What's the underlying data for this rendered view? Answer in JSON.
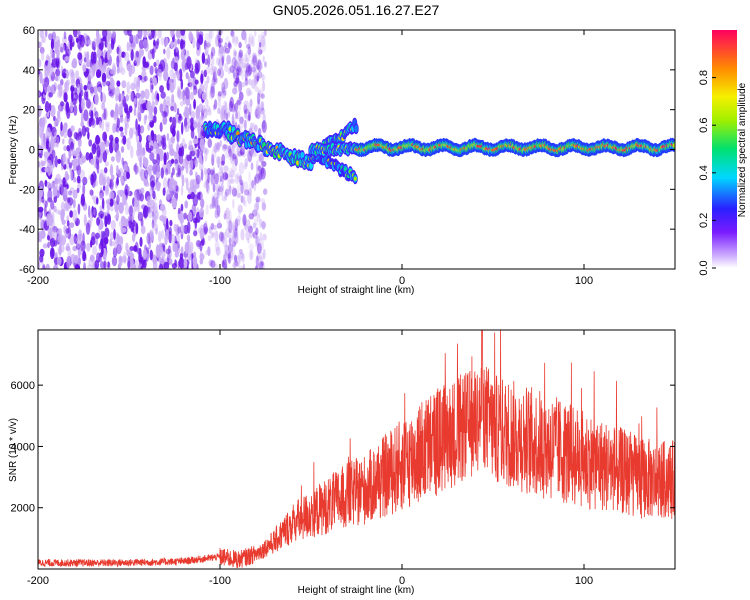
{
  "figure": {
    "title": "GN05.2026.051.16.27.E27"
  },
  "colors": {
    "snr_line": "#e83a2e",
    "noise_purple": "#6a16e8",
    "background": "#ffffff",
    "axis": "#000000"
  },
  "chart_data": [
    {
      "type": "heatmap",
      "name": "spectrogram",
      "xlabel": "Height of straight line (km)",
      "ylabel": "Frequency (Hz)",
      "xlim": [
        -200,
        150
      ],
      "ylim": [
        -60,
        60
      ],
      "xticks": [
        -200,
        -100,
        0,
        100
      ],
      "yticks": [
        60,
        40,
        20,
        0,
        -20,
        -40,
        -60
      ],
      "colorbar": {
        "label": "Normalized spectral amplitude",
        "range": [
          0,
          1
        ],
        "ticks": [
          "0.0",
          "0.2",
          "0.4",
          "0.6",
          "0.8"
        ],
        "tick_values": [
          0,
          0.2,
          0.4,
          0.6,
          0.8
        ]
      },
      "regions": [
        {
          "feature": "broadband noise",
          "x": [
            -200,
            -108
          ],
          "frequency": [
            -60,
            60
          ],
          "amplitude": 0.15
        },
        {
          "feature": "sparse noise",
          "x": [
            -108,
            -75
          ],
          "frequency": [
            -60,
            60
          ],
          "amplitude": 0.05
        },
        {
          "feature": "signal onset",
          "x": [
            -108,
            -95
          ],
          "frequency_center": 10,
          "amplitude": 0.3
        },
        {
          "feature": "descending signal",
          "x": [
            -95,
            -50
          ],
          "frequency_center": [
            8,
            -7
          ],
          "amplitude": 0.35
        },
        {
          "feature": "branching signal",
          "x": [
            -50,
            -25
          ],
          "frequency_center": [
            12,
            -14
          ],
          "amplitude": 0.35
        },
        {
          "feature": "steady signal",
          "x": [
            -25,
            150
          ],
          "frequency_center": 1,
          "amplitude": 0.85
        }
      ]
    },
    {
      "type": "line",
      "name": "snr",
      "xlabel": "Height of straight line (km)",
      "ylabel": "SNR (10 * v/v)",
      "xlim": [
        -200,
        150
      ],
      "ylim": [
        0,
        7800
      ],
      "xticks": [
        -200,
        -100,
        0,
        100
      ],
      "yticks": [
        2000,
        4000,
        6000
      ],
      "series": [
        {
          "name": "SNR",
          "x": [
            -200,
            -180,
            -160,
            -140,
            -120,
            -100,
            -90,
            -80,
            -70,
            -60,
            -50,
            -40,
            -30,
            -20,
            -10,
            0,
            10,
            20,
            30,
            40,
            44,
            50,
            60,
            70,
            80,
            90,
            100,
            110,
            120,
            130,
            140,
            150
          ],
          "values": [
            200,
            200,
            200,
            220,
            250,
            400,
            300,
            500,
            900,
            1500,
            1800,
            2100,
            2400,
            2600,
            3000,
            3400,
            3800,
            4200,
            4500,
            4800,
            5200,
            4600,
            4400,
            4200,
            4000,
            3800,
            3600,
            3400,
            3200,
            3000,
            2900,
            2900
          ]
        }
      ]
    }
  ]
}
